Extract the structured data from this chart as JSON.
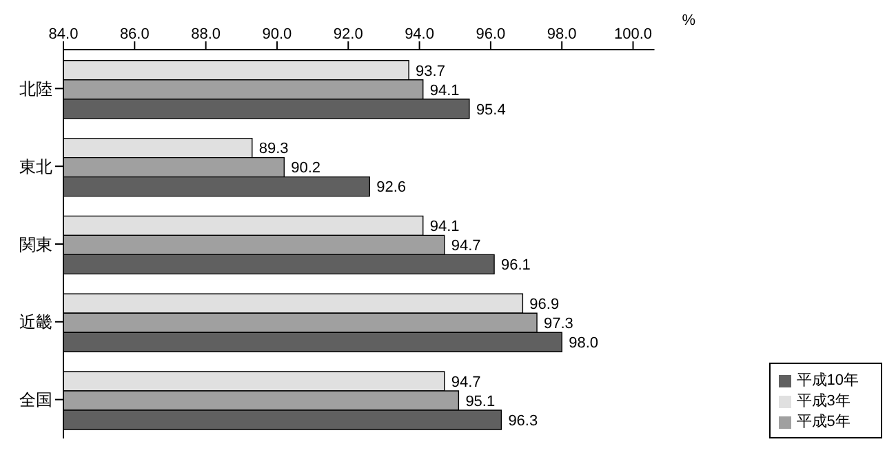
{
  "chart_data": {
    "type": "bar",
    "orientation": "horizontal",
    "xlabel": "%",
    "categories": [
      "北陸",
      "東北",
      "関東",
      "近畿",
      "全国"
    ],
    "series": [
      {
        "name": "平成3年",
        "color": "#e0e0e0",
        "values": [
          93.7,
          89.3,
          94.1,
          96.9,
          94.7
        ],
        "value_labels": [
          "93.7",
          "89.3",
          "94.1",
          "96.9",
          "94.7"
        ]
      },
      {
        "name": "平成5年",
        "color": "#a0a0a0",
        "values": [
          94.1,
          90.2,
          94.7,
          97.3,
          95.1
        ],
        "value_labels": [
          "94.1",
          "90.2",
          "94.7",
          "97.3",
          "95.1"
        ]
      },
      {
        "name": "平成10年",
        "color": "#606060",
        "values": [
          95.4,
          92.6,
          96.1,
          98.0,
          96.3
        ],
        "value_labels": [
          "95.4",
          "92.6",
          "96.1",
          "98.0",
          "96.3"
        ]
      }
    ],
    "xlim": [
      84,
      100.6
    ],
    "xticks": [
      {
        "value": 84,
        "label": "84.0"
      },
      {
        "value": 86,
        "label": "86.0"
      },
      {
        "value": 88,
        "label": "88.0"
      },
      {
        "value": 90,
        "label": "90.0"
      },
      {
        "value": 92,
        "label": "92.0"
      },
      {
        "value": 94,
        "label": "94.0"
      },
      {
        "value": 96,
        "label": "96.0"
      },
      {
        "value": 98,
        "label": "98.0"
      },
      {
        "value": 100,
        "label": "100.0"
      }
    ],
    "legend": "bottom right"
  }
}
